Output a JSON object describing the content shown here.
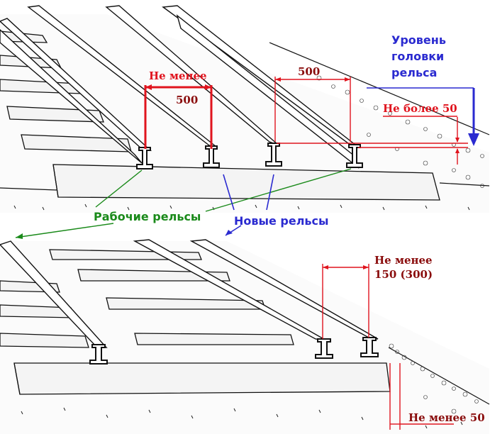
{
  "top_view": {
    "dim_gauge_label_line1": "Не менее",
    "dim_gauge_value": "500",
    "dim_spacing_value": "500",
    "dim_height_label": "Не более 50",
    "rail_head_level_line1": "Уровень",
    "rail_head_level_line2": "головки",
    "rail_head_level_line3": "рельса"
  },
  "legend": {
    "working_rails": "Рабочие рельсы",
    "new_rails": "Новые рельсы"
  },
  "bottom_view": {
    "dim_offset_line1": "Не менее",
    "dim_offset_line2": "150 (300)",
    "dim_bottom_label": "Не менее 50"
  },
  "colors": {
    "dimension_red": "#e0141e",
    "dimension_dark": "#8a0d0d",
    "label_blue": "#2a2ad0",
    "label_green": "#1a8a1a"
  }
}
